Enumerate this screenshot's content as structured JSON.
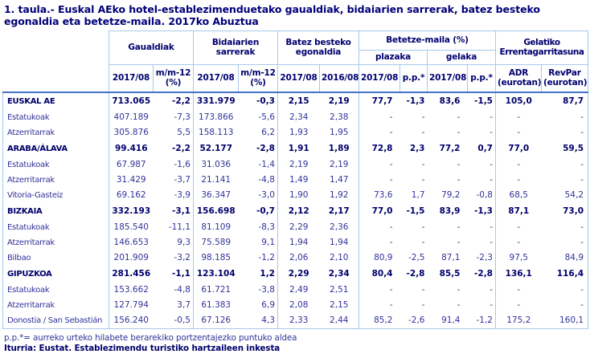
{
  "title": "1. taula.- Euskal AEko hotel-establezimenduetako gaualdiak, bidaiarien sarrerak, batez besteko egonaldia eta betetze-maila. 2017ko Abuztua",
  "colors": {
    "text_navy": "#000080",
    "light_border": "#A6C9EC",
    "header_rule": "#4472C4",
    "background": "#FFFFFF"
  },
  "table": {
    "groups": {
      "gaualdiak": "Gaualdiak",
      "bidaiarien_sarrerak": "Bidaiarien sarrerak",
      "batez_besteko_egonaldia": "Batez besteko egonaldia",
      "betetze_maila": "Betetze-maila (%)",
      "plazaka": "plazaka",
      "gelaka": "gelaka",
      "gelatiko_errentagarritasuna": "Gelatiko Errentagarritasuna"
    },
    "sub_headers": [
      "2017/08",
      "m/m-12 (%)",
      "2017/08",
      "m/m-12 (%)",
      "2017/08",
      "2016/08",
      "2017/08",
      "p.p.*",
      "2017/08",
      "p.p.*",
      "ADR (eurotan)",
      "RevPar (eurotan)"
    ],
    "rows": [
      {
        "label": "EUSKAL AE",
        "bold": true,
        "values": [
          "713.065",
          "-2,2",
          "331.979",
          "-0,3",
          "2,15",
          "2,19",
          "77,7",
          "-1,3",
          "83,6",
          "-1,5",
          "105,0",
          "87,7"
        ]
      },
      {
        "label": "Estatukoak",
        "bold": false,
        "values": [
          "407.189",
          "-7,3",
          "173.866",
          "-5,6",
          "2,34",
          "2,38",
          "-",
          "-",
          "-",
          "-",
          "-",
          "-"
        ]
      },
      {
        "label": "Atzerritarrak",
        "bold": false,
        "values": [
          "305.876",
          "5,5",
          "158.113",
          "6,2",
          "1,93",
          "1,95",
          "-",
          "-",
          "-",
          "-",
          "-",
          "-"
        ]
      },
      {
        "label": "ARABA/ÁLAVA",
        "bold": true,
        "values": [
          "99.416",
          "-2,2",
          "52.177",
          "-2,8",
          "1,91",
          "1,89",
          "72,8",
          "2,3",
          "77,2",
          "0,7",
          "77,0",
          "59,5"
        ]
      },
      {
        "label": "Estatukoak",
        "bold": false,
        "values": [
          "67.987",
          "-1,6",
          "31.036",
          "-1,4",
          "2,19",
          "2,19",
          "-",
          "-",
          "-",
          "-",
          "-",
          "-"
        ]
      },
      {
        "label": "Atzerritarrak",
        "bold": false,
        "values": [
          "31.429",
          "-3,7",
          "21.141",
          "-4,8",
          "1,49",
          "1,47",
          "-",
          "-",
          "-",
          "-",
          "-",
          "-"
        ]
      },
      {
        "label": "Vitoria-Gasteiz",
        "bold": false,
        "values": [
          "69.162",
          "-3,9",
          "36.347",
          "-3,0",
          "1,90",
          "1,92",
          "73,6",
          "1,7",
          "79,2",
          "-0,8",
          "68,5",
          "54,2"
        ]
      },
      {
        "label": "BIZKAIA",
        "bold": true,
        "values": [
          "332.193",
          "-3,1",
          "156.698",
          "-0,7",
          "2,12",
          "2,17",
          "77,0",
          "-1,5",
          "83,9",
          "-1,3",
          "87,1",
          "73,0"
        ]
      },
      {
        "label": "Estatukoak",
        "bold": false,
        "values": [
          "185.540",
          "-11,1",
          "81.109",
          "-8,3",
          "2,29",
          "2,36",
          "-",
          "-",
          "-",
          "-",
          "-",
          "-"
        ]
      },
      {
        "label": "Atzerritarrak",
        "bold": false,
        "values": [
          "146.653",
          "9,3",
          "75.589",
          "9,1",
          "1,94",
          "1,94",
          "-",
          "-",
          "-",
          "-",
          "-",
          "-"
        ]
      },
      {
        "label": "Bilbao",
        "bold": false,
        "values": [
          "201.909",
          "-3,2",
          "98.185",
          "-1,2",
          "2,06",
          "2,10",
          "80,9",
          "-2,5",
          "87,1",
          "-2,3",
          "97,5",
          "84,9"
        ]
      },
      {
        "label": "GIPUZKOA",
        "bold": true,
        "values": [
          "281.456",
          "-1,1",
          "123.104",
          "1,2",
          "2,29",
          "2,34",
          "80,4",
          "-2,8",
          "85,5",
          "-2,8",
          "136,1",
          "116,4"
        ]
      },
      {
        "label": "Estatukoak",
        "bold": false,
        "values": [
          "153.662",
          "-4,8",
          "61.721",
          "-3,8",
          "2,49",
          "2,51",
          "-",
          "-",
          "-",
          "-",
          "-",
          "-"
        ]
      },
      {
        "label": "Atzerritarrak",
        "bold": false,
        "values": [
          "127.794",
          "3,7",
          "61.383",
          "6,9",
          "2,08",
          "2,15",
          "-",
          "-",
          "-",
          "-",
          "-",
          "-"
        ]
      },
      {
        "label": "Donostia / San Sebastián",
        "bold": false,
        "values": [
          "156.240",
          "-0,5",
          "67.126",
          "4,3",
          "2,33",
          "2,44",
          "85,2",
          "-2,6",
          "91,4",
          "-1,2",
          "175,2",
          "160,1"
        ]
      }
    ]
  },
  "footnotes": {
    "pp_note": "p.p.*= aurreko urteko hilabete berarekiko portzentajezko puntuko aldea",
    "source": "Iturria: Eustat. Establezimendu turistiko hartzaileen inkesta"
  }
}
